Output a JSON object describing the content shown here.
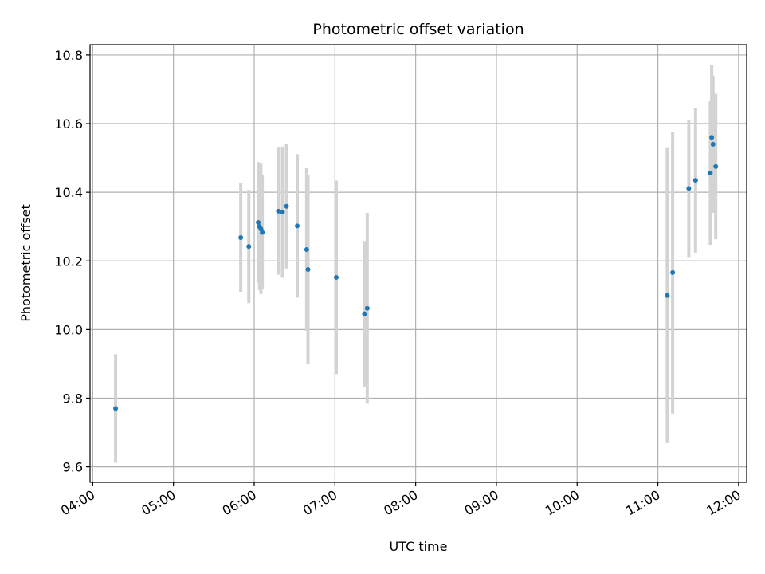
{
  "chart_data": {
    "type": "scatter",
    "title": "Photometric offset variation",
    "xlabel": "UTC time",
    "ylabel": "Photometric offset",
    "x_ticks": [
      "04:00",
      "05:00",
      "06:00",
      "07:00",
      "08:00",
      "09:00",
      "10:00",
      "11:00",
      "12:00"
    ],
    "x_tick_hours": [
      4,
      5,
      6,
      7,
      8,
      9,
      10,
      11,
      12
    ],
    "y_ticks": [
      "9.6",
      "9.8",
      "10.0",
      "10.2",
      "10.4",
      "10.6",
      "10.8"
    ],
    "y_tick_values": [
      9.6,
      9.8,
      10.0,
      10.2,
      10.4,
      10.6,
      10.8
    ],
    "xlim": [
      "03:58",
      "12:06"
    ],
    "ylim": [
      9.555,
      10.83
    ],
    "grid": true,
    "point_color": "#1f77b4",
    "errorbar_color": "#d3d3d3",
    "points": [
      {
        "time": "04:17",
        "y": 9.77,
        "err": 0.158
      },
      {
        "time": "05:50",
        "y": 10.268,
        "err": 0.158
      },
      {
        "time": "05:56",
        "y": 10.242,
        "err": 0.165
      },
      {
        "time": "06:03",
        "y": 10.312,
        "err": 0.176
      },
      {
        "time": "06:04",
        "y": 10.3,
        "err": 0.185
      },
      {
        "time": "06:05",
        "y": 10.293,
        "err": 0.19
      },
      {
        "time": "06:06",
        "y": 10.283,
        "err": 0.166
      },
      {
        "time": "06:18",
        "y": 10.345,
        "err": 0.185
      },
      {
        "time": "06:21",
        "y": 10.342,
        "err": 0.191
      },
      {
        "time": "06:24",
        "y": 10.359,
        "err": 0.181
      },
      {
        "time": "06:32",
        "y": 10.302,
        "err": 0.209
      },
      {
        "time": "06:39",
        "y": 10.233,
        "err": 0.237
      },
      {
        "time": "06:40",
        "y": 10.175,
        "err": 0.276
      },
      {
        "time": "07:01",
        "y": 10.152,
        "err": 0.282
      },
      {
        "time": "07:22",
        "y": 10.046,
        "err": 0.212
      },
      {
        "time": "07:24",
        "y": 10.062,
        "err": 0.278
      },
      {
        "time": "11:07",
        "y": 10.099,
        "err": 0.43
      },
      {
        "time": "11:11",
        "y": 10.166,
        "err": 0.411
      },
      {
        "time": "11:23",
        "y": 10.411,
        "err": 0.2
      },
      {
        "time": "11:28",
        "y": 10.435,
        "err": 0.211
      },
      {
        "time": "11:39",
        "y": 10.456,
        "err": 0.209
      },
      {
        "time": "11:40",
        "y": 10.56,
        "err": 0.21
      },
      {
        "time": "11:41",
        "y": 10.54,
        "err": 0.2
      },
      {
        "time": "11:43",
        "y": 10.475,
        "err": 0.212
      }
    ]
  }
}
